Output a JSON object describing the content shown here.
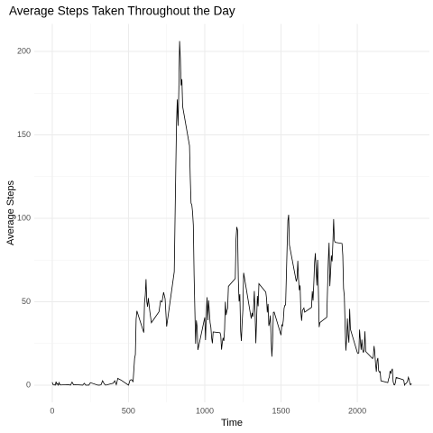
{
  "chart_data": {
    "type": "line",
    "title": "Average Steps Taken Throughout the Day",
    "x_label": "Time",
    "y_label": "Average Steps",
    "x": [
      0,
      5,
      10,
      15,
      20,
      25,
      30,
      35,
      40,
      45,
      50,
      55,
      100,
      110,
      120,
      130,
      140,
      150,
      200,
      210,
      220,
      230,
      240,
      250,
      300,
      310,
      320,
      330,
      340,
      350,
      400,
      410,
      420,
      430,
      440,
      450,
      500,
      510,
      520,
      530,
      540,
      545,
      550,
      555,
      600,
      605,
      610,
      615,
      620,
      625,
      630,
      640,
      650,
      700,
      710,
      720,
      730,
      740,
      750,
      800,
      810,
      815,
      820,
      825,
      830,
      835,
      840,
      845,
      850,
      855,
      900,
      905,
      910,
      915,
      920,
      925,
      930,
      935,
      940,
      945,
      950,
      955,
      1000,
      1005,
      1010,
      1015,
      1020,
      1025,
      1030,
      1035,
      1040,
      1045,
      1050,
      1055,
      1100,
      1105,
      1110,
      1115,
      1120,
      1125,
      1130,
      1135,
      1140,
      1145,
      1150,
      1155,
      1200,
      1205,
      1210,
      1215,
      1220,
      1225,
      1230,
      1235,
      1240,
      1245,
      1250,
      1255,
      1300,
      1305,
      1310,
      1315,
      1320,
      1325,
      1330,
      1335,
      1340,
      1345,
      1350,
      1355,
      1400,
      1405,
      1410,
      1415,
      1420,
      1425,
      1430,
      1435,
      1440,
      1445,
      1450,
      1455,
      1500,
      1505,
      1510,
      1515,
      1520,
      1525,
      1530,
      1535,
      1540,
      1545,
      1550,
      1555,
      1600,
      1605,
      1610,
      1615,
      1620,
      1625,
      1630,
      1635,
      1640,
      1645,
      1650,
      1655,
      1700,
      1705,
      1710,
      1715,
      1720,
      1725,
      1730,
      1735,
      1740,
      1745,
      1750,
      1755,
      1800,
      1805,
      1810,
      1815,
      1820,
      1825,
      1830,
      1835,
      1840,
      1845,
      1850,
      1855,
      1900,
      1905,
      1910,
      1915,
      1920,
      1925,
      1930,
      1935,
      1940,
      1945,
      1950,
      1955,
      2000,
      2005,
      2010,
      2015,
      2020,
      2025,
      2030,
      2035,
      2040,
      2045,
      2050,
      2055,
      2100,
      2105,
      2110,
      2115,
      2120,
      2125,
      2130,
      2135,
      2140,
      2145,
      2150,
      2155,
      2200,
      2205,
      2210,
      2215,
      2220,
      2225,
      2230,
      2235,
      2240,
      2245,
      2250,
      2255,
      2300,
      2305,
      2310,
      2315,
      2320,
      2325,
      2330,
      2335,
      2340,
      2345,
      2350,
      2355
    ],
    "values": [
      1.7,
      0.3,
      0.1,
      0.2,
      0,
      2.1,
      0.5,
      0.9,
      0,
      1.5,
      0.3,
      0.1,
      0.3,
      0.2,
      0,
      1.8,
      0.2,
      0.3,
      0,
      1.1,
      0,
      0,
      0,
      1.5,
      0,
      0,
      0.2,
      2.6,
      0.9,
      0,
      1.2,
      2.6,
      0.3,
      4.1,
      3.5,
      3.1,
      0,
      3,
      3.3,
      2.1,
      16,
      18.3,
      39.5,
      44.5,
      31.5,
      49.3,
      53.8,
      63.5,
      50,
      47,
      52.2,
      44.1,
      37.4,
      44,
      50.5,
      49.9,
      55.7,
      51.8,
      35.1,
      68,
      129.4,
      157.5,
      171.2,
      155.4,
      177.3,
      206.2,
      195.9,
      179.6,
      183.4,
      167,
      143.5,
      124,
      109.1,
      108.1,
      103.7,
      95.9,
      66.2,
      45.2,
      24.8,
      38.8,
      34.9,
      21.1,
      40.6,
      27,
      42.4,
      52.7,
      38.9,
      50.8,
      44.3,
      37.4,
      34.7,
      28.3,
      25.1,
      31.9,
      31.4,
      29.7,
      21.3,
      25.5,
      28.4,
      26.5,
      33.4,
      50,
      42,
      44.6,
      46,
      59.2,
      63.9,
      87.7,
      94.8,
      92.8,
      63.4,
      50.2,
      54.5,
      32.4,
      26.5,
      37.7,
      45.1,
      67.3,
      42.3,
      39.9,
      43.3,
      41,
      46.2,
      56.4,
      42.8,
      25.1,
      40,
      53.5,
      47.3,
      60.8,
      55.8,
      52,
      43.6,
      48.7,
      35.5,
      37.5,
      41.8,
      27.5,
      17.1,
      26.1,
      43.6,
      43.8,
      30,
      36.1,
      35.5,
      38.8,
      46,
      47.8,
      48.1,
      65.3,
      82.9,
      98.7,
      102.1,
      84,
      62.1,
      64.1,
      74.5,
      63.2,
      56.9,
      59.8,
      43.9,
      38.6,
      44.7,
      45.5,
      46.2,
      43.7,
      46.6,
      56.3,
      50.7,
      61.2,
      73.4,
      79.1,
      68.9,
      59.7,
      75.1,
      56.5,
      34.8,
      37.5,
      40.7,
      58,
      74.7,
      85.3,
      59.3,
      67.8,
      77.7,
      74.2,
      85.3,
      99.5,
      86.6,
      85.6,
      84.9,
      77.8,
      58,
      53.4,
      36.3,
      20.7,
      27.4,
      40,
      30.2,
      25.5,
      45.7,
      33.5,
      19.6,
      19,
      19.3,
      33.3,
      26.8,
      21.2,
      27.3,
      21.3,
      19.5,
      21.3,
      32.3,
      20.2,
      15.9,
      17.2,
      23.5,
      19.2,
      12.5,
      8,
      14.7,
      16.3,
      8.7,
      7.8,
      8.1,
      2.6,
      1.5,
      3.7,
      4.8,
      8.5,
      7.1,
      8.7,
      9.8,
      2.2,
      0.3,
      0.1,
      1.6,
      4.6,
      3.3,
      2.8,
      0,
      0.8,
      1,
      1.6,
      2.6,
      4.7,
      3.3,
      0.6,
      0.2,
      1.1
    ],
    "color": "#000000",
    "xlim": [
      -117.75,
      2472.75
    ],
    "xticks": [
      0,
      500,
      1000,
      1500,
      2000
    ],
    "ylim": [
      -10.3,
      216.5
    ],
    "yticks": [
      0,
      50,
      100,
      150,
      200
    ],
    "grid": true
  }
}
